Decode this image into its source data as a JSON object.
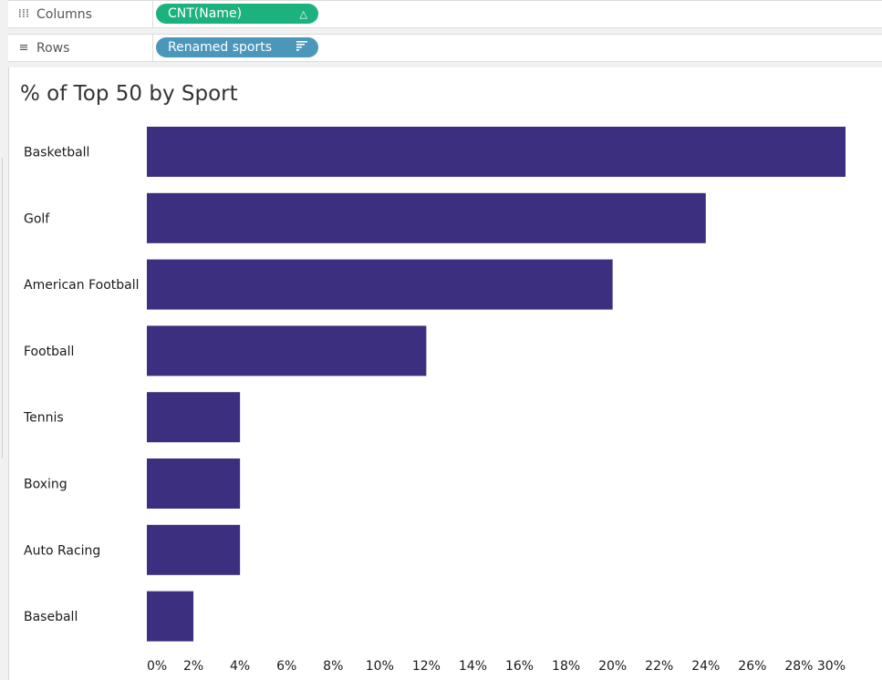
{
  "shelves": {
    "columns": {
      "label": "Columns",
      "icon": "columns-icon",
      "pill": "CNT(Name)",
      "pill_icon": "delta-icon",
      "pill_color": "#1cb27e"
    },
    "rows": {
      "label": "Rows",
      "icon": "rows-icon",
      "pill": "Renamed sports",
      "pill_icon": "sort-icon",
      "pill_color": "#4b97ba"
    }
  },
  "sheet": {
    "title": "% of Top 50 by Sport"
  },
  "chart_data": {
    "type": "bar",
    "orientation": "horizontal",
    "title": "% of Top 50 by Sport",
    "xlabel": "",
    "ylabel": "",
    "categories": [
      "Basketball",
      "Golf",
      "American Football",
      "Football",
      "Tennis",
      "Boxing",
      "Auto Racing",
      "Baseball"
    ],
    "values": [
      30,
      24,
      20,
      12,
      4,
      4,
      4,
      2
    ],
    "xlim": [
      0,
      30
    ],
    "x_ticks": [
      "0%",
      "2%",
      "4%",
      "6%",
      "8%",
      "10%",
      "12%",
      "14%",
      "16%",
      "18%",
      "20%",
      "22%",
      "24%",
      "26%",
      "28%",
      "30%"
    ],
    "bar_color": "#3d2f7f",
    "grid": false,
    "legend": "none"
  }
}
